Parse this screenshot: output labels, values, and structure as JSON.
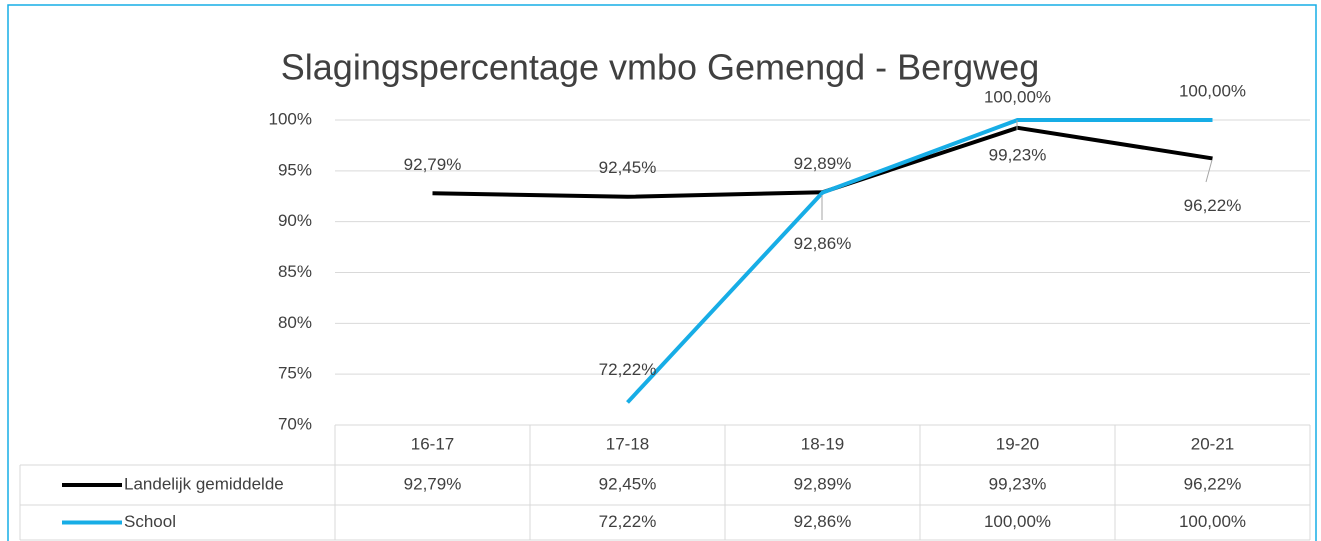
{
  "chart_data": {
    "type": "line",
    "title": "Slagingspercentage vmbo Gemengd - Bergweg",
    "categories": [
      "16-17",
      "17-18",
      "18-19",
      "19-20",
      "20-21"
    ],
    "series": [
      {
        "name": "Landelijk gemiddelde",
        "color": "#000000",
        "values": [
          92.79,
          92.45,
          92.89,
          99.23,
          96.22
        ],
        "value_labels": [
          "92,79%",
          "92,45%",
          "92,89%",
          "99,23%",
          "96,22%"
        ]
      },
      {
        "name": "School",
        "color": "#17ade6",
        "values": [
          null,
          72.22,
          92.86,
          100,
          100
        ],
        "value_labels": [
          null,
          "72,22%",
          "92,86%",
          "100,00%",
          "100,00%"
        ]
      }
    ],
    "ylim": [
      70,
      100
    ],
    "yticks": [
      {
        "value": 70,
        "label": "70%"
      },
      {
        "value": 75,
        "label": "75%"
      },
      {
        "value": 80,
        "label": "80%"
      },
      {
        "value": 85,
        "label": "85%"
      },
      {
        "value": 90,
        "label": "90%"
      },
      {
        "value": 95,
        "label": "95%"
      },
      {
        "value": 100,
        "label": "100%"
      }
    ],
    "grid": true,
    "data_table": true
  }
}
